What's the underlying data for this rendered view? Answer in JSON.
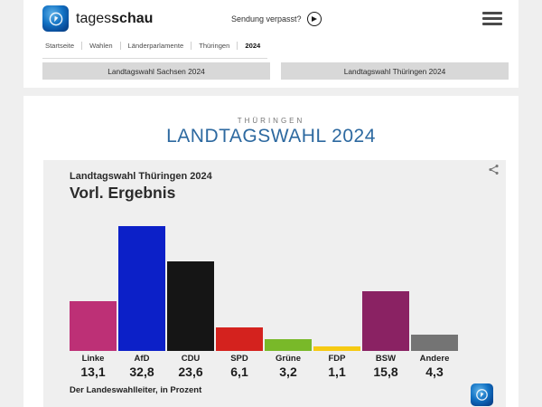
{
  "header": {
    "brand_regular": "tages",
    "brand_bold": "schau",
    "missed_broadcast_label": "Sendung verpasst?",
    "breadcrumb": [
      "Startseite",
      "Wahlen",
      "Länderparlamente",
      "Thüringen",
      "2024"
    ]
  },
  "icons": {
    "logo": "tagesschau-globe",
    "play": "play-circle",
    "menu": "hamburger",
    "share": "share-nodes"
  },
  "nav_buttons": {
    "sachsen": "Landtagswahl Sachsen 2024",
    "thueringen": "Landtagswahl Thüringen 2024"
  },
  "title": {
    "kicker": "THÜRINGEN",
    "heading": "LANDTAGSWAHL 2024"
  },
  "card": {
    "title": "Landtagswahl Thüringen 2024",
    "subtitle": "Vorl. Ergebnis",
    "source": "Der Landeswahlleiter, in Prozent"
  },
  "chart_data": {
    "type": "bar",
    "title": "Landtagswahl Thüringen 2024",
    "subtitle": "Vorl. Ergebnis",
    "categories": [
      "Linke",
      "AfD",
      "CDU",
      "SPD",
      "Grüne",
      "FDP",
      "BSW",
      "Andere"
    ],
    "values": [
      13.1,
      32.8,
      23.6,
      6.1,
      3.2,
      1.1,
      15.8,
      4.3
    ],
    "value_labels": [
      "13,1",
      "32,8",
      "23,6",
      "6,1",
      "3,2",
      "1,1",
      "15,8",
      "4,3"
    ],
    "colors": [
      "#bd3076",
      "#0c20c8",
      "#151515",
      "#d4221e",
      "#79b929",
      "#f6ca13",
      "#8a2263",
      "#747474"
    ],
    "unit": "Prozent",
    "ylim": [
      0,
      33.5
    ],
    "grid": false,
    "legend": "none",
    "source": "Der Landeswahlleiter, in Prozent"
  },
  "colors": {
    "accent_blue": "#2d69a0",
    "page_bg": "#efefef",
    "card_bg": "#efefef",
    "button_bg": "#d8d8d8"
  }
}
